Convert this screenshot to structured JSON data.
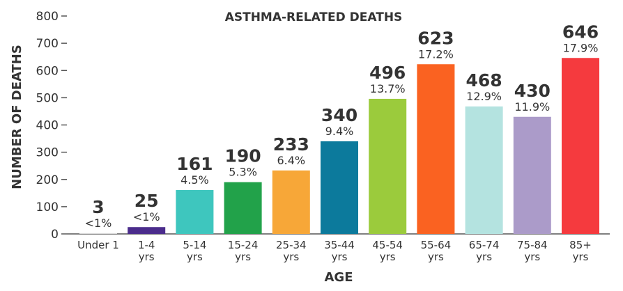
{
  "chart_data": {
    "type": "bar",
    "title": "ASTHMA-RELATED DEATHS",
    "xlabel": "AGE",
    "ylabel": "NUMBER OF DEATHS",
    "ylim": [
      0,
      800
    ],
    "yticks": [
      "0",
      "100",
      "200",
      "300",
      "400",
      "500",
      "600",
      "700",
      "800"
    ],
    "grid": false,
    "categories": [
      [
        "Under 1"
      ],
      [
        "1-4",
        "yrs"
      ],
      [
        "5-14",
        "yrs"
      ],
      [
        "15-24",
        "yrs"
      ],
      [
        "25-34",
        "yrs"
      ],
      [
        "35-44",
        "yrs"
      ],
      [
        "45-54",
        "yrs"
      ],
      [
        "55-64",
        "yrs"
      ],
      [
        "65-74",
        "yrs"
      ],
      [
        "75-84",
        "yrs"
      ],
      [
        "85+",
        "yrs"
      ]
    ],
    "values": [
      3,
      25,
      161,
      190,
      233,
      340,
      496,
      623,
      468,
      430,
      646
    ],
    "value_labels": [
      "3",
      "25",
      "161",
      "190",
      "233",
      "340",
      "496",
      "623",
      "468",
      "430",
      "646"
    ],
    "percent_labels": [
      "<1%",
      "<1%",
      "4.5%",
      "5.3%",
      "6.4%",
      "9.4%",
      "13.7%",
      "17.2%",
      "12.9%",
      "11.9%",
      "17.9%"
    ],
    "colors": [
      "#d9d9d9",
      "#4b2c8c",
      "#3ec6be",
      "#22a24a",
      "#f7a738",
      "#0c7a9c",
      "#9bcb3c",
      "#fa6221",
      "#b4e3e0",
      "#ab9bc9",
      "#f53a3e"
    ]
  }
}
